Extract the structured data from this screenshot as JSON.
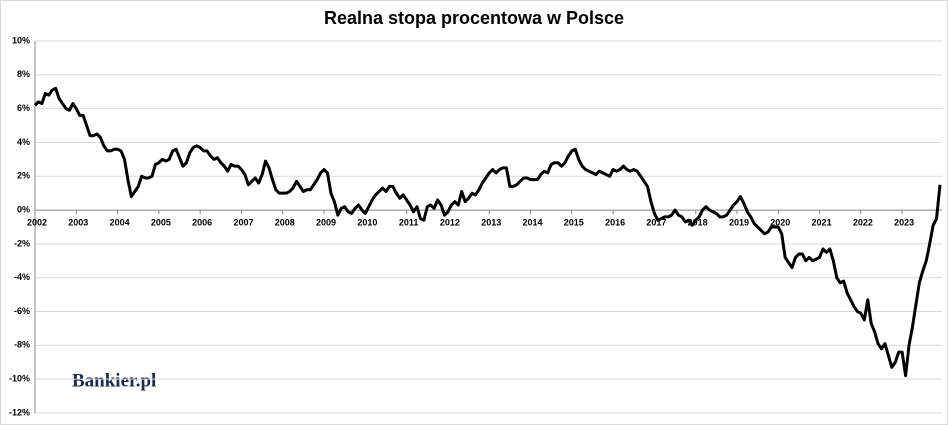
{
  "chart_data": {
    "type": "line",
    "title": "Realna stopa procentowa w Polsce",
    "watermark": "Bankier.pl",
    "categories": [
      "2002",
      null,
      null,
      null,
      null,
      null,
      null,
      null,
      null,
      null,
      null,
      null,
      "2003",
      null,
      null,
      null,
      null,
      null,
      null,
      null,
      null,
      null,
      null,
      null,
      "2004",
      null,
      null,
      null,
      null,
      null,
      null,
      null,
      null,
      null,
      null,
      null,
      "2005",
      null,
      null,
      null,
      null,
      null,
      null,
      null,
      null,
      null,
      null,
      null,
      "2006",
      null,
      null,
      null,
      null,
      null,
      null,
      null,
      null,
      null,
      null,
      null,
      "2007",
      null,
      null,
      null,
      null,
      null,
      null,
      null,
      null,
      null,
      null,
      null,
      "2008",
      null,
      null,
      null,
      null,
      null,
      null,
      null,
      null,
      null,
      null,
      null,
      "2009",
      null,
      null,
      null,
      null,
      null,
      null,
      null,
      null,
      null,
      null,
      null,
      "2010",
      null,
      null,
      null,
      null,
      null,
      null,
      null,
      null,
      null,
      null,
      null,
      "2011",
      null,
      null,
      null,
      null,
      null,
      null,
      null,
      null,
      null,
      null,
      null,
      "2012",
      null,
      null,
      null,
      null,
      null,
      null,
      null,
      null,
      null,
      null,
      null,
      "2013",
      null,
      null,
      null,
      null,
      null,
      null,
      null,
      null,
      null,
      null,
      null,
      "2014",
      null,
      null,
      null,
      null,
      null,
      null,
      null,
      null,
      null,
      null,
      null,
      "2015",
      null,
      null,
      null,
      null,
      null,
      null,
      null,
      null,
      null,
      null,
      null,
      "2016",
      null,
      null,
      null,
      null,
      null,
      null,
      null,
      null,
      null,
      null,
      null,
      "2017",
      null,
      null,
      null,
      null,
      null,
      null,
      null,
      null,
      null,
      null,
      null,
      "2018",
      null,
      null,
      null,
      null,
      null,
      null,
      null,
      null,
      null,
      null,
      null,
      "2019",
      null,
      null,
      null,
      null,
      null,
      null,
      null,
      null,
      null,
      null,
      null,
      "2020",
      null,
      null,
      null,
      null,
      null,
      null,
      null,
      null,
      null,
      null,
      null,
      "2021",
      null,
      null,
      null,
      null,
      null,
      null,
      null,
      null,
      null,
      null,
      null,
      "2022",
      null,
      null,
      null,
      null,
      null,
      null,
      null,
      null,
      null,
      null,
      null,
      "2023",
      null,
      null,
      null,
      null,
      null,
      null,
      null,
      null,
      null,
      null,
      null
    ],
    "series": [
      {
        "color": "#000000",
        "values": [
          6.2,
          6.4,
          6.3,
          6.9,
          6.8,
          7.1,
          7.2,
          6.6,
          6.3,
          6.0,
          5.9,
          6.3,
          6.0,
          5.6,
          5.6,
          5.0,
          4.4,
          4.4,
          4.5,
          4.3,
          3.8,
          3.5,
          3.5,
          3.6,
          3.6,
          3.5,
          3.0,
          1.8,
          0.8,
          1.1,
          1.4,
          2.0,
          1.9,
          1.9,
          2.0,
          2.7,
          2.8,
          3.0,
          2.9,
          3.0,
          3.5,
          3.6,
          3.1,
          2.6,
          2.8,
          3.4,
          3.7,
          3.8,
          3.7,
          3.5,
          3.5,
          3.2,
          3.0,
          3.1,
          2.8,
          2.6,
          2.3,
          2.7,
          2.6,
          2.6,
          2.4,
          2.1,
          1.5,
          1.7,
          1.9,
          1.6,
          2.1,
          2.9,
          2.5,
          1.8,
          1.2,
          1.0,
          1.0,
          1.0,
          1.1,
          1.3,
          1.7,
          1.4,
          1.1,
          1.2,
          1.2,
          1.5,
          1.8,
          2.2,
          2.4,
          2.2,
          1.0,
          0.5,
          -0.3,
          0.1,
          0.2,
          -0.1,
          -0.2,
          0.1,
          0.3,
          0.0,
          -0.2,
          0.2,
          0.6,
          0.9,
          1.1,
          1.3,
          1.1,
          1.4,
          1.4,
          1.0,
          0.7,
          0.9,
          0.6,
          0.3,
          -0.1,
          0.2,
          -0.5,
          -0.6,
          0.2,
          0.3,
          0.1,
          0.6,
          0.3,
          -0.3,
          -0.1,
          0.3,
          0.5,
          0.3,
          1.1,
          0.5,
          0.7,
          1.0,
          0.9,
          1.2,
          1.6,
          1.9,
          2.2,
          2.4,
          2.2,
          2.4,
          2.5,
          2.5,
          1.4,
          1.4,
          1.5,
          1.7,
          1.9,
          1.9,
          1.8,
          1.8,
          1.8,
          2.1,
          2.3,
          2.2,
          2.7,
          2.8,
          2.8,
          2.6,
          2.8,
          3.2,
          3.5,
          3.6,
          3.0,
          2.6,
          2.4,
          2.3,
          2.2,
          2.1,
          2.3,
          2.2,
          2.1,
          2.0,
          2.4,
          2.3,
          2.4,
          2.6,
          2.4,
          2.3,
          2.4,
          2.3,
          2.0,
          1.7,
          1.4,
          0.5,
          -0.2,
          -0.6,
          -0.5,
          -0.4,
          -0.4,
          -0.3,
          0.0,
          -0.3,
          -0.4,
          -0.7,
          -0.6,
          -0.9,
          -0.6,
          -0.4,
          0.0,
          0.2,
          0.0,
          -0.1,
          -0.2,
          -0.4,
          -0.4,
          -0.3,
          0.0,
          0.3,
          0.5,
          0.8,
          0.4,
          -0.1,
          -0.4,
          -0.8,
          -1.0,
          -1.2,
          -1.4,
          -1.3,
          -1.0,
          -1.0,
          -1.0,
          -1.4,
          -2.8,
          -3.1,
          -3.4,
          -2.8,
          -2.6,
          -2.6,
          -3.0,
          -2.8,
          -3.0,
          -2.9,
          -2.8,
          -2.3,
          -2.5,
          -2.3,
          -3.0,
          -4.0,
          -4.3,
          -4.2,
          -4.9,
          -5.3,
          -5.7,
          -6.0,
          -6.1,
          -6.5,
          -5.3,
          -6.7,
          -7.2,
          -7.9,
          -8.2,
          -7.9,
          -8.6,
          -9.3,
          -9.0,
          -8.4,
          -8.4,
          -9.8,
          -8.0,
          -6.9,
          -5.6,
          -4.3,
          -3.6,
          -3.0,
          -2.0,
          -0.9,
          -0.5,
          1.5
        ]
      }
    ],
    "ylim": [
      -12,
      10
    ],
    "yticks": [
      {
        "value": -12,
        "label": "-12%"
      },
      {
        "value": -10,
        "label": "-10%"
      },
      {
        "value": -8,
        "label": "-8%"
      },
      {
        "value": -6,
        "label": "-6%"
      },
      {
        "value": -4,
        "label": "-4%"
      },
      {
        "value": -2,
        "label": "-2%"
      },
      {
        "value": 0,
        "label": "0%"
      },
      {
        "value": 2,
        "label": "2%"
      },
      {
        "value": 4,
        "label": "4%"
      },
      {
        "value": 6,
        "label": "6%"
      },
      {
        "value": 8,
        "label": "8%"
      },
      {
        "value": 10,
        "label": "10%"
      }
    ],
    "grid": true
  }
}
